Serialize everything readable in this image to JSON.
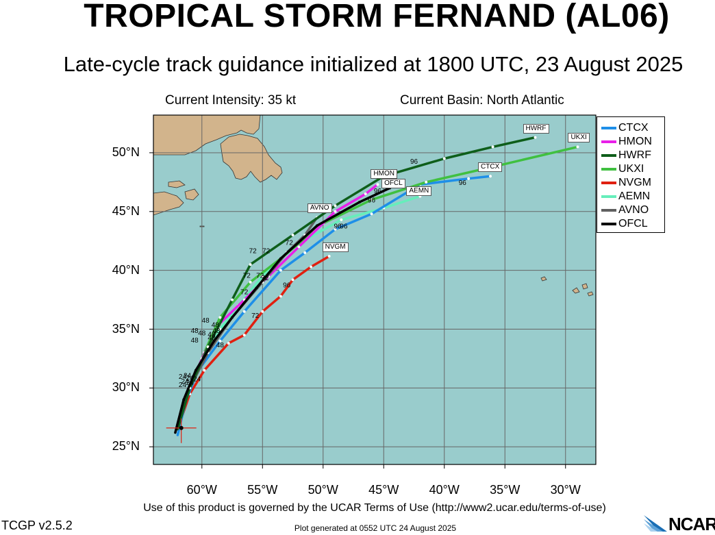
{
  "header": {
    "title": "TROPICAL STORM FERNAND (AL06)",
    "subtitle": "Late-cycle track guidance initialized at 1800 UTC, 23 August 2025"
  },
  "info": {
    "intensity": "Current Intensity: 35 kt",
    "basin": "Current Basin: North Atlantic"
  },
  "axes": {
    "lat_labels": [
      "25°N",
      "30°N",
      "35°N",
      "40°N",
      "45°N",
      "50°N"
    ],
    "lat_values": [
      25,
      30,
      35,
      40,
      45,
      50
    ],
    "lon_labels": [
      "60°W",
      "55°W",
      "50°W",
      "45°W",
      "40°W",
      "35°W",
      "30°W"
    ],
    "lon_values": [
      -60,
      -55,
      -50,
      -45,
      -40,
      -35,
      -30
    ]
  },
  "colors": {
    "ocean": "#99CCCC",
    "land": "#D2B48C",
    "grid": "#666666"
  },
  "legend": [
    {
      "name": "CTCX",
      "color": "#1E8FE8"
    },
    {
      "name": "HMON",
      "color": "#E820E8"
    },
    {
      "name": "HWRF",
      "color": "#0E5E1A"
    },
    {
      "name": "UKXI",
      "color": "#40C040"
    },
    {
      "name": "NVGM",
      "color": "#E02010"
    },
    {
      "name": "AEMN",
      "color": "#66EEBB"
    },
    {
      "name": "AVNO",
      "color": "#606060"
    },
    {
      "name": "OFCL",
      "color": "#000000"
    }
  ],
  "chart_data": {
    "type": "map-tracks",
    "storm_position": {
      "lon": -61.7,
      "lat": 26.6
    },
    "tracks": [
      {
        "name": "CTCX",
        "points": [
          [
            -62.0,
            26.0
          ],
          [
            -61.3,
            29.0
          ],
          [
            -60.3,
            31.5
          ],
          [
            -58.5,
            34.0
          ],
          [
            -56.5,
            36.5
          ],
          [
            -53.5,
            40.0
          ],
          [
            -51.5,
            41.5
          ],
          [
            -49.0,
            43.5
          ],
          [
            -46.0,
            44.8
          ],
          [
            -42.0,
            47.3
          ],
          [
            -38.0,
            47.8
          ],
          [
            -36.2,
            48.0
          ]
        ]
      },
      {
        "name": "HMON",
        "points": [
          [
            -62.0,
            26.5
          ],
          [
            -61.2,
            29.5
          ],
          [
            -60.0,
            32.5
          ],
          [
            -58.5,
            35.5
          ],
          [
            -56.5,
            37.5
          ],
          [
            -54.5,
            39.5
          ],
          [
            -52.0,
            42.0
          ],
          [
            -49.0,
            45.0
          ],
          [
            -46.5,
            46.5
          ],
          [
            -45.5,
            47.3
          ]
        ]
      },
      {
        "name": "HWRF",
        "points": [
          [
            -62.0,
            26.5
          ],
          [
            -61.0,
            30.0
          ],
          [
            -59.5,
            33.5
          ],
          [
            -57.5,
            37.5
          ],
          [
            -56.0,
            40.5
          ],
          [
            -52.5,
            43.0
          ],
          [
            -49.0,
            45.5
          ],
          [
            -45.0,
            48.0
          ],
          [
            -40.0,
            49.5
          ],
          [
            -36.0,
            50.5
          ],
          [
            -32.5,
            51.3
          ]
        ]
      },
      {
        "name": "UKXI",
        "points": [
          [
            -62.0,
            26.5
          ],
          [
            -61.0,
            30.0
          ],
          [
            -59.8,
            33.0
          ],
          [
            -58.5,
            36.0
          ],
          [
            -56.0,
            39.0
          ],
          [
            -53.5,
            41.0
          ],
          [
            -50.0,
            44.0
          ],
          [
            -46.0,
            46.0
          ],
          [
            -41.5,
            47.5
          ],
          [
            -36.0,
            48.8
          ],
          [
            -29.0,
            50.5
          ]
        ]
      },
      {
        "name": "NVGM",
        "points": [
          [
            -62.0,
            26.5
          ],
          [
            -61.0,
            29.5
          ],
          [
            -59.8,
            31.5
          ],
          [
            -57.8,
            33.8
          ],
          [
            -56.5,
            34.5
          ],
          [
            -55.0,
            36.5
          ],
          [
            -53.5,
            37.8
          ],
          [
            -52.5,
            39.2
          ],
          [
            -51.0,
            40.3
          ],
          [
            -49.5,
            41.2
          ]
        ]
      },
      {
        "name": "AEMN",
        "points": [
          [
            -62.0,
            26.5
          ],
          [
            -61.2,
            29.5
          ],
          [
            -60.0,
            32.0
          ],
          [
            -58.5,
            35.0
          ],
          [
            -57.0,
            37.0
          ],
          [
            -55.0,
            39.5
          ],
          [
            -52.5,
            42.0
          ],
          [
            -48.5,
            44.3
          ],
          [
            -45.0,
            45.3
          ],
          [
            -42.0,
            46.3
          ]
        ]
      },
      {
        "name": "AVNO",
        "points": [
          [
            -62.0,
            26.5
          ],
          [
            -61.0,
            30.0
          ],
          [
            -59.5,
            33.0
          ],
          [
            -57.5,
            36.0
          ],
          [
            -55.0,
            39.0
          ],
          [
            -53.0,
            41.5
          ],
          [
            -51.5,
            43.0
          ],
          [
            -50.5,
            44.5
          ]
        ]
      },
      {
        "name": "OFCL",
        "points": [
          [
            -62.2,
            26.2
          ],
          [
            -61.5,
            29.0
          ],
          [
            -60.5,
            31.5
          ],
          [
            -59.0,
            34.0
          ],
          [
            -57.5,
            36.0
          ],
          [
            -55.5,
            38.5
          ],
          [
            -53.5,
            41.0
          ],
          [
            -50.5,
            43.8
          ],
          [
            -47.0,
            45.8
          ],
          [
            -44.5,
            47.0
          ]
        ]
      }
    ],
    "end_labels": [
      {
        "text": "HWRF",
        "lon": -32.5,
        "lat": 51.3
      },
      {
        "text": "UKXI",
        "lon": -29.0,
        "lat": 50.5
      },
      {
        "text": "CTCX",
        "lon": -36.2,
        "lat": 48.0
      },
      {
        "text": "HMON",
        "lon": -45.5,
        "lat": 47.3
      },
      {
        "text": "OFCL",
        "lon": -44.5,
        "lat": 47.0
      },
      {
        "text": "AEMN",
        "lon": -42.0,
        "lat": 46.3
      },
      {
        "text": "AVNO",
        "lon": -50.5,
        "lat": 44.5
      },
      {
        "text": "NVGM",
        "lon": -49.5,
        "lat": 41.2
      }
    ],
    "hour_labels": [
      {
        "text": "96",
        "lon": -42.5,
        "lat": 49.3
      },
      {
        "text": "96",
        "lon": -38.5,
        "lat": 47.5
      },
      {
        "text": "96",
        "lon": -45.5,
        "lat": 46.8
      },
      {
        "text": "96",
        "lon": -46.0,
        "lat": 46.0
      },
      {
        "text": "96",
        "lon": -48.8,
        "lat": 43.8
      },
      {
        "text": "96",
        "lon": -48.3,
        "lat": 43.8
      },
      {
        "text": "96",
        "lon": -53.0,
        "lat": 38.8
      },
      {
        "text": "72",
        "lon": -55.8,
        "lat": 41.7
      },
      {
        "text": "72",
        "lon": -55.2,
        "lat": 39.6
      },
      {
        "text": "72",
        "lon": -52.8,
        "lat": 42.4
      },
      {
        "text": "72",
        "lon": -54.7,
        "lat": 41.7
      },
      {
        "text": "72",
        "lon": -55.6,
        "lat": 36.2
      },
      {
        "text": "72",
        "lon": -56.5,
        "lat": 38.2
      },
      {
        "text": "72",
        "lon": -56.3,
        "lat": 39.6
      },
      {
        "text": "72",
        "lon": -54.8,
        "lat": 39.4
      },
      {
        "text": "48",
        "lon": -59.7,
        "lat": 35.8
      },
      {
        "text": "48",
        "lon": -58.9,
        "lat": 35.4
      },
      {
        "text": "48",
        "lon": -60.6,
        "lat": 34.9
      },
      {
        "text": "48",
        "lon": -60.0,
        "lat": 34.7
      },
      {
        "text": "48",
        "lon": -59.2,
        "lat": 34.6
      },
      {
        "text": "48",
        "lon": -59.2,
        "lat": 34.3
      },
      {
        "text": "48",
        "lon": -60.6,
        "lat": 34.1
      },
      {
        "text": "48",
        "lon": -58.8,
        "lat": 34.9
      },
      {
        "text": "48",
        "lon": -58.5,
        "lat": 33.7
      },
      {
        "text": "24",
        "lon": -61.6,
        "lat": 31.0
      },
      {
        "text": "24",
        "lon": -61.4,
        "lat": 30.6
      },
      {
        "text": "24",
        "lon": -61.2,
        "lat": 31.1
      },
      {
        "text": "24",
        "lon": -61.0,
        "lat": 30.9
      },
      {
        "text": "24",
        "lon": -61.6,
        "lat": 30.3
      },
      {
        "text": "24",
        "lon": -60.4,
        "lat": 30.8
      },
      {
        "text": "24",
        "lon": -61.0,
        "lat": 30.5
      }
    ]
  },
  "footer": {
    "terms": "Use of this product is governed by the UCAR Terms of Use (http://www2.ucar.edu/terms-of-use)",
    "version": "TCGP v2.5.2",
    "generated": "Plot generated at 0552 UTC   24 August 2025",
    "logo": "NCAR"
  }
}
